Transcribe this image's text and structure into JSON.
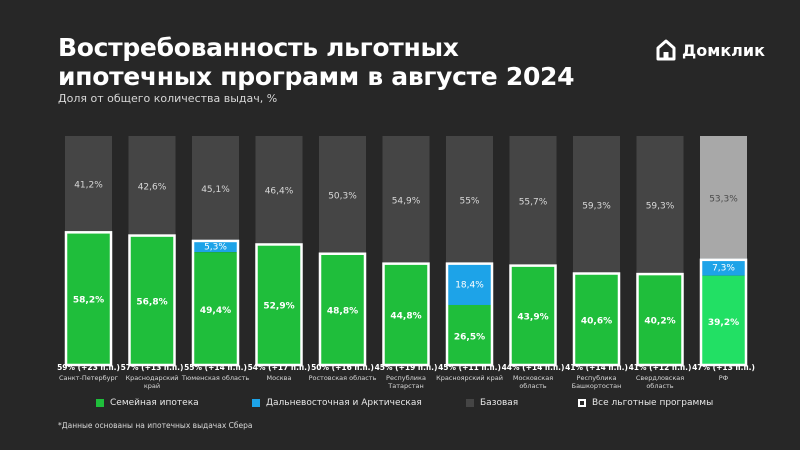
{
  "title_lines": [
    "Востребованность льготных",
    "ипотечных программ в августе 2024"
  ],
  "subtitle": "Доля от общего количества выдач, %",
  "logo": {
    "text": "Домклик",
    "icon": "domclick-house-logo-icon"
  },
  "footnote": "*Данные основаны на ипотечных выдачах Сбера",
  "legend": [
    {
      "key": "family",
      "label": "Семейная ипотека"
    },
    {
      "key": "fareast",
      "label": "Дальневосточная и Арктическая"
    },
    {
      "key": "base",
      "label": "Базовая"
    },
    {
      "key": "all",
      "label": "Все льготные программы"
    }
  ],
  "colors": {
    "family": "#1fbe3b",
    "family_rf": "#22e064",
    "fareast": "#1da3e8",
    "base": "#454545",
    "base_rf": "#a8a8a8",
    "outline": "#ffffff",
    "background": "#272727"
  },
  "chart_data": {
    "type": "bar",
    "stacked": true,
    "ylim": [
      0,
      100
    ],
    "categories": [
      {
        "total": "59% (+23 п.п.)",
        "name": [
          "Санкт-Петербург"
        ]
      },
      {
        "total": "57% (+13 п.п.)",
        "name": [
          "Краснодарский",
          "край"
        ]
      },
      {
        "total": "55% (+14 п.п.)",
        "name": [
          "Тюменская область"
        ]
      },
      {
        "total": "54% (+17 п.п.)",
        "name": [
          "Москва"
        ]
      },
      {
        "total": "50% (+16 п.п.)",
        "name": [
          "Ростовская область"
        ]
      },
      {
        "total": "45% (+19 п.п.)",
        "name": [
          "Республика",
          "Татарстан"
        ]
      },
      {
        "total": "45% (+11 п.п.)",
        "name": [
          "Красноярский край"
        ]
      },
      {
        "total": "44% (+14 п.п.)",
        "name": [
          "Московская",
          "область"
        ]
      },
      {
        "total": "41% (+14 п.п.)",
        "name": [
          "Республика",
          "Башкортостан"
        ]
      },
      {
        "total": "41% (+12 п.п.)",
        "name": [
          "Свердловская",
          "область"
        ]
      },
      {
        "total": "47% (+13 п.п.)",
        "name": [
          "РФ"
        ]
      }
    ],
    "series": [
      {
        "key": "family",
        "name": "Семейная ипотека",
        "values": [
          58.2,
          56.8,
          49.4,
          52.9,
          48.8,
          44.8,
          26.5,
          43.9,
          40.6,
          40.2,
          39.2
        ],
        "labels": [
          "58,2%",
          "56,8%",
          "49,4%",
          "52,9%",
          "48,8%",
          "44,8%",
          "26,5%",
          "43,9%",
          "40,6%",
          "40,2%",
          "39,2%"
        ]
      },
      {
        "key": "fareast",
        "name": "Дальневосточная и Арктическая",
        "values": [
          0,
          0,
          5.3,
          0,
          0,
          0,
          18.4,
          0,
          0,
          0,
          7.3
        ],
        "labels": [
          "",
          "",
          "5,3%",
          "",
          "",
          "",
          "18,4%",
          "",
          "",
          "",
          "7,3%"
        ]
      },
      {
        "key": "base",
        "name": "Базовая",
        "values": [
          41.2,
          42.6,
          45.1,
          46.4,
          50.3,
          54.9,
          55,
          55.7,
          59.3,
          59.3,
          53.3
        ],
        "labels": [
          "41,2%",
          "42,6%",
          "45,1%",
          "46,4%",
          "50,3%",
          "54,9%",
          "55%",
          "55,7%",
          "59,3%",
          "59,3%",
          "53,3%"
        ]
      }
    ],
    "highlight_last": true
  }
}
